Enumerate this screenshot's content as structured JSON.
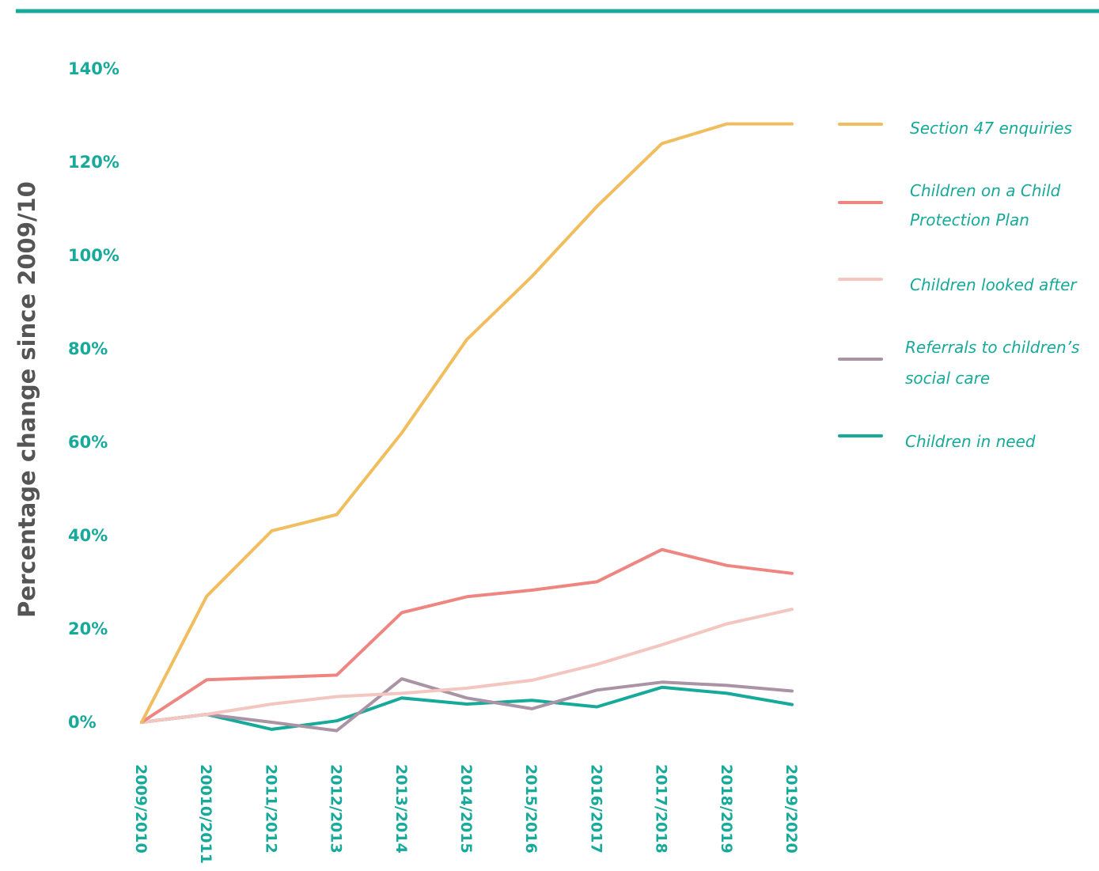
{
  "chart_data": {
    "type": "line",
    "title": "",
    "xlabel": "",
    "ylabel": "Percentage change since 2009/10",
    "categories": [
      "2009/2010",
      "20010/2011",
      "2011/2012",
      "2012/2013",
      "2013/2014",
      "2014/2015",
      "2015/2016",
      "2016/2017",
      "2017/2018",
      "2018/2019",
      "2019/2020"
    ],
    "ylim": [
      0,
      140
    ],
    "yticks": [
      0,
      20,
      40,
      60,
      80,
      100,
      120,
      140
    ],
    "ytick_labels": [
      "0%",
      "20%",
      "40%",
      "60%",
      "80%",
      "100%",
      "120%",
      "140%"
    ],
    "grid": false,
    "legend_position": "right",
    "accent_color": "#17a99a",
    "series": [
      {
        "name": "Section 47 enquiries",
        "legend_lines": [
          "Section 47 enquiries"
        ],
        "color": "#f0bd5f",
        "values": [
          0,
          27,
          41,
          44.5,
          62,
          82,
          95.5,
          110.5,
          124,
          128.2,
          128.2
        ]
      },
      {
        "name": "Children on a Child Protection Plan",
        "legend_lines": [
          "Children on a Child",
          "Protection Plan"
        ],
        "color": "#ef8580",
        "values": [
          0,
          9.1,
          9.6,
          10.1,
          23.5,
          26.9,
          28.3,
          30.1,
          37,
          33.6,
          31.9
        ]
      },
      {
        "name": "Children looked after",
        "legend_lines": [
          "Children looked after"
        ],
        "color": "#f4c6c0",
        "values": [
          0,
          1.7,
          3.9,
          5.5,
          6.2,
          7.3,
          9,
          12.4,
          16.6,
          21.1,
          24.2
        ]
      },
      {
        "name": "Referrals to children’s social care",
        "legend_lines": [
          "Referrals to children’s",
          "social care"
        ],
        "color": "#a993a5",
        "values": [
          0,
          1.7,
          0,
          -1.8,
          9.3,
          5.2,
          2.9,
          6.9,
          8.6,
          7.9,
          6.7
        ]
      },
      {
        "name": "Children in need",
        "legend_lines": [
          "Children in need"
        ],
        "color": "#17a99a",
        "values": [
          0,
          1.7,
          -1.5,
          0.3,
          5.2,
          3.9,
          4.7,
          3.3,
          7.5,
          6.2,
          3.8
        ]
      }
    ]
  }
}
